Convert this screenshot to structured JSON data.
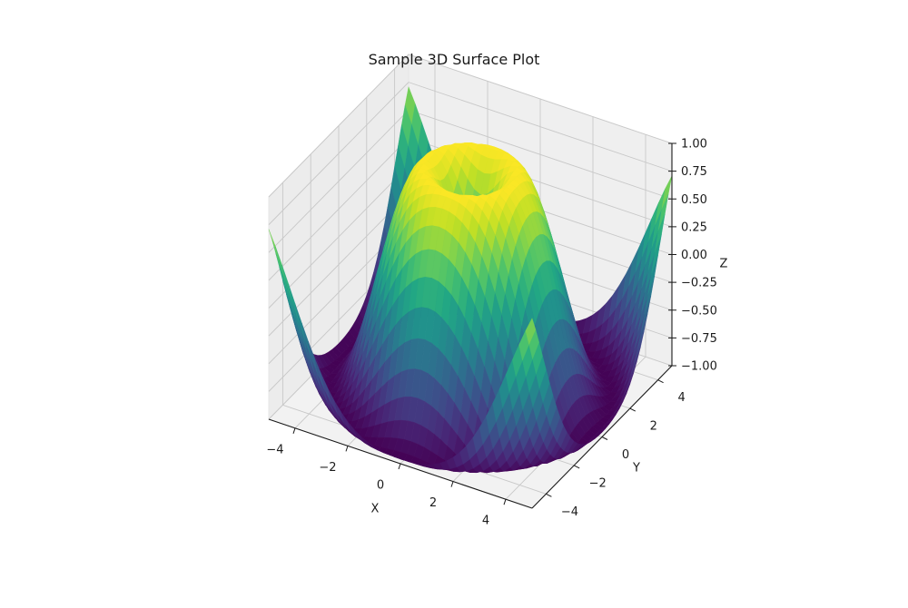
{
  "figure": {
    "title": "Sample 3D Surface Plot",
    "background": "#ffffff"
  },
  "chart_data": {
    "type": "surface3d",
    "title": "Sample 3D Surface Plot",
    "function": "Z = sin(sqrt(X^2 + Y^2))",
    "colormap": "viridis",
    "xlabel": "X",
    "ylabel": "Y",
    "zlabel": "Z",
    "xlim": [
      -5,
      5
    ],
    "ylim": [
      -5,
      5
    ],
    "zlim": [
      -1,
      1
    ],
    "x_ticks": [
      -4,
      -2,
      0,
      2,
      4
    ],
    "y_ticks": [
      -4,
      -2,
      0,
      2,
      4
    ],
    "z_ticks": [
      -1.0,
      -0.75,
      -0.5,
      -0.25,
      0.0,
      0.25,
      0.5,
      0.75,
      1.0
    ],
    "x_tick_labels": [
      "−4",
      "−2",
      "0",
      "2",
      "4"
    ],
    "y_tick_labels": [
      "−4",
      "−2",
      "0",
      "2",
      "4"
    ],
    "z_tick_labels": [
      "−1.00",
      "−0.75",
      "−0.50",
      "−0.25",
      "0.00",
      "0.25",
      "0.50",
      "0.75",
      "1.00"
    ],
    "grid": true,
    "grid_resolution": 40,
    "pane_color": "#f2f2f2",
    "grid_color": "#c8c8c8",
    "axis_color": "#1a1a1a"
  }
}
